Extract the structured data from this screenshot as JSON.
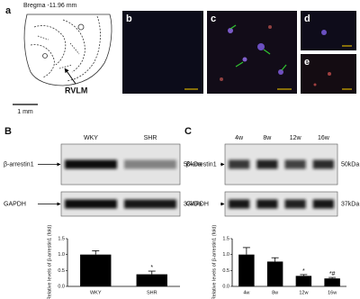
{
  "panel_a": {
    "label": "a",
    "bregma": "Bregma -11.96 mm",
    "region": "RVLM",
    "scale": "1 mm"
  },
  "micrographs": [
    {
      "label": "b"
    },
    {
      "label": "c"
    },
    {
      "label": "d"
    },
    {
      "label": "e"
    }
  ],
  "blots": [
    {
      "label": "B",
      "lanes": [
        "WKY",
        "SHR"
      ],
      "rows": [
        {
          "protein": "β-arrestin1",
          "size": "50kDa"
        },
        {
          "protein": "GAPDH",
          "size": "37kDa"
        }
      ]
    },
    {
      "label": "C",
      "lanes": [
        "4w",
        "8w",
        "12w",
        "16w"
      ],
      "rows": [
        {
          "protein": "β-arrestin1",
          "size": "50kDa"
        },
        {
          "protein": "GAPDH",
          "size": "37kDa"
        }
      ]
    }
  ],
  "chart_data": [
    {
      "type": "bar",
      "categories": [
        "WKY",
        "SHR"
      ],
      "values": [
        1.0,
        0.38
      ],
      "errors": [
        0.12,
        0.1
      ],
      "color": "#000000",
      "ylabel": "Relative levels of β-arrestin1 (fold)",
      "ylim": [
        0,
        1.5
      ],
      "yticks": [
        {
          "value": 0,
          "label": "0.0"
        },
        0.5,
        {
          "value": 1,
          "label": "1.0"
        },
        1.5
      ],
      "annotations": [
        {
          "category": "SHR",
          "text": "*"
        }
      ]
    },
    {
      "type": "bar",
      "categories": [
        "4w",
        "8w",
        "12w",
        "16w"
      ],
      "values": [
        1.0,
        0.78,
        0.33,
        0.25
      ],
      "errors": [
        0.22,
        0.12,
        0.04,
        0.03
      ],
      "color": "#000000",
      "ylabel": "Relative levels of β-arrestin1 (fold)",
      "ylim": [
        0,
        1.5
      ],
      "yticks": [
        {
          "value": 0,
          "label": "0.0"
        },
        0.5,
        {
          "value": 1,
          "label": "1.0"
        },
        1.5
      ],
      "annotations": [
        {
          "category": "12w",
          "text": "*"
        },
        {
          "category": "16w",
          "text": "*#"
        }
      ]
    }
  ]
}
